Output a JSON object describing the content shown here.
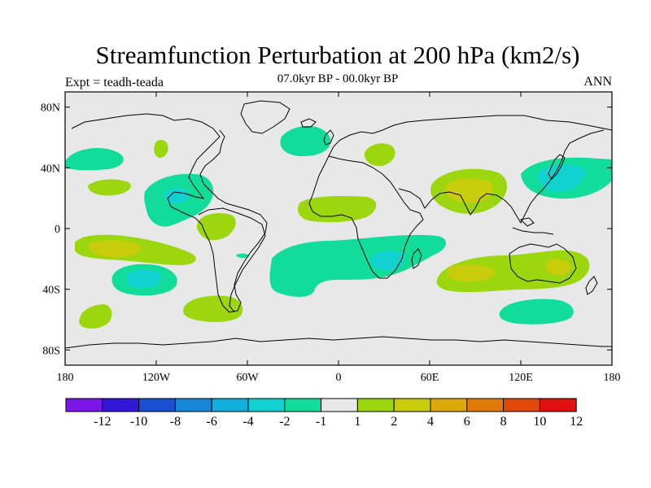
{
  "title": "Streamfunction Perturbation at 200 hPa (km2/s)",
  "subtitle": "07.0kyr BP - 00.0kyr BP",
  "left_label": "Expt = teadh-teada",
  "right_label": "ANN",
  "lat_ticks": [
    "80N",
    "40N",
    "0",
    "40S",
    "80S"
  ],
  "lon_ticks": [
    "180",
    "120W",
    "60W",
    "0",
    "60E",
    "120E",
    "180"
  ],
  "colorbar": {
    "labels": [
      "-12",
      "-10",
      "-8",
      "-6",
      "-4",
      "-2",
      "-1",
      "1",
      "2",
      "4",
      "6",
      "8",
      "10",
      "12"
    ],
    "colors": [
      "#7a16e8",
      "#3418d8",
      "#1a4fd2",
      "#1686d8",
      "#12aedc",
      "#11d2d0",
      "#12dc9a",
      "#e8e8e8",
      "#9cd60e",
      "#c8cc0a",
      "#dcaa08",
      "#e07a08",
      "#e04a08",
      "#e01010"
    ]
  },
  "chart_data": {
    "type": "contour-map",
    "title": "Streamfunction Perturbation at 200 hPa (km2/s)",
    "subtitle": "07.0kyr BP - 00.0kyr BP",
    "experiment": "teadh-teada",
    "season": "ANN",
    "lon_range": [
      -180,
      180
    ],
    "lat_range": [
      -90,
      90
    ],
    "levels": [
      -12,
      -10,
      -8,
      -6,
      -4,
      -2,
      -1,
      1,
      2,
      4,
      6,
      8,
      10,
      12
    ],
    "anomalies": [
      {
        "region": "North Pacific (west)",
        "lon": -165,
        "lat": 45,
        "sign": "negative",
        "magnitude": "-1 to -2"
      },
      {
        "region": "North Atlantic",
        "lon": -20,
        "lat": 58,
        "sign": "negative",
        "magnitude": "-1 to -2"
      },
      {
        "region": "Gulf of Mexico / Caribbean",
        "lon": -95,
        "lat": 20,
        "sign": "negative",
        "magnitude": "-2 to -4"
      },
      {
        "region": "Northwest Pacific / Japan",
        "lon": 155,
        "lat": 35,
        "sign": "negative",
        "magnitude": "-2 to -4"
      },
      {
        "region": "Tropical Indian Ocean / Africa",
        "lon": 30,
        "lat": -20,
        "sign": "negative",
        "magnitude": "-2 to -4"
      },
      {
        "region": "South Pacific",
        "lon": -135,
        "lat": -32,
        "sign": "negative",
        "magnitude": "-2 to -4"
      },
      {
        "region": "Southern Indian Ocean",
        "lon": 140,
        "lat": -50,
        "sign": "negative",
        "magnitude": "-1 to -2"
      },
      {
        "region": "Tibetan Plateau / Asia",
        "lon": 85,
        "lat": 30,
        "sign": "positive",
        "magnitude": "2 to 4"
      },
      {
        "region": "Australia",
        "lon": 105,
        "lat": -30,
        "sign": "positive",
        "magnitude": "2 to 4"
      },
      {
        "region": "Southeast Pacific",
        "lon": -150,
        "lat": -12,
        "sign": "positive",
        "magnitude": "2 to 4"
      },
      {
        "region": "Tropical Atlantic",
        "lon": -25,
        "lat": 15,
        "sign": "positive",
        "magnitude": "1 to 2"
      },
      {
        "region": "South America",
        "lon": -80,
        "lat": 5,
        "sign": "positive",
        "magnitude": "1 to 2"
      },
      {
        "region": "South Atlantic",
        "lon": -70,
        "lat": -50,
        "sign": "positive",
        "magnitude": "1 to 2"
      },
      {
        "region": "Mediterranean / Black Sea",
        "lon": 30,
        "lat": 45,
        "sign": "positive",
        "magnitude": "1 to 2"
      },
      {
        "region": "East Pacific",
        "lon": -155,
        "lat": 30,
        "sign": "positive",
        "magnitude": "1 to 2"
      },
      {
        "region": "Far South Pacific",
        "lon": -160,
        "lat": -55,
        "sign": "positive",
        "magnitude": "1 to 2"
      }
    ]
  }
}
